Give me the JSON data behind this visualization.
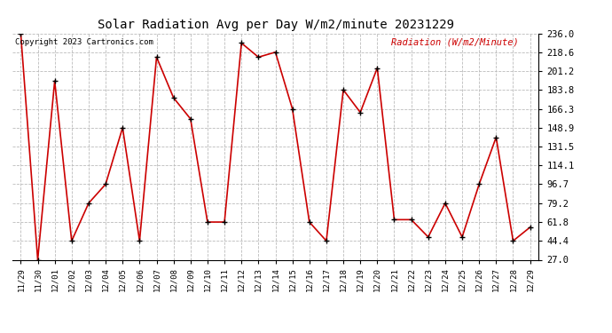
{
  "title": "Solar Radiation Avg per Day W/m2/minute 20231229",
  "copyright": "Copyright 2023 Cartronics.com",
  "ylabel": "Radiation (W/m2/Minute)",
  "dates": [
    "11/29",
    "11/30",
    "12/01",
    "12/02",
    "12/03",
    "12/04",
    "12/05",
    "12/06",
    "12/07",
    "12/08",
    "12/09",
    "12/10",
    "12/11",
    "12/12",
    "12/13",
    "12/14",
    "12/15",
    "12/16",
    "12/17",
    "12/18",
    "12/19",
    "12/20",
    "12/21",
    "12/22",
    "12/23",
    "12/24",
    "12/25",
    "12/26",
    "12/27",
    "12/28",
    "12/29"
  ],
  "values": [
    236.0,
    27.0,
    192.0,
    44.4,
    79.2,
    96.7,
    148.9,
    44.4,
    214.0,
    176.5,
    157.0,
    61.8,
    61.8,
    227.0,
    214.0,
    218.6,
    166.3,
    61.8,
    44.4,
    183.8,
    163.0,
    204.0,
    64.0,
    64.0,
    48.0,
    79.2,
    48.0,
    96.7,
    140.0,
    44.4,
    57.0
  ],
  "line_color": "#cc0000",
  "marker_color": "#000000",
  "background_color": "#ffffff",
  "grid_color": "#bbbbbb",
  "title_color": "#000000",
  "copyright_color": "#000000",
  "ylabel_color": "#cc0000",
  "ylim": [
    27.0,
    236.0
  ],
  "yticks": [
    27.0,
    44.4,
    61.8,
    79.2,
    96.7,
    114.1,
    131.5,
    148.9,
    166.3,
    183.8,
    201.2,
    218.6,
    236.0
  ]
}
